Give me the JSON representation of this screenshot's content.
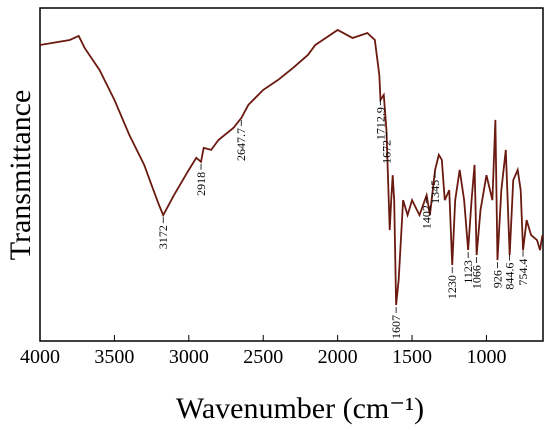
{
  "chart_data": {
    "type": "line",
    "xlabel": "Wavenumber (cm⁻¹)",
    "ylabel": "Transmittance",
    "xlim": [
      4000,
      620
    ],
    "xticks": [
      4000,
      3500,
      3000,
      2500,
      2000,
      1500,
      1000
    ],
    "ylim": [
      0,
      100
    ],
    "series": [
      {
        "color": "#6b1a10",
        "x": [
          4000,
          3800,
          3740,
          3700,
          3600,
          3500,
          3400,
          3300,
          3250,
          3200,
          3172,
          3100,
          3000,
          2950,
          2918,
          2900,
          2850,
          2800,
          2700,
          2647,
          2600,
          2500,
          2400,
          2300,
          2200,
          2150,
          2100,
          2000,
          1900,
          1800,
          1750,
          1720,
          1712,
          1690,
          1672,
          1650,
          1640,
          1630,
          1620,
          1607,
          1590,
          1560,
          1530,
          1500,
          1450,
          1402,
          1380,
          1345,
          1320,
          1300,
          1280,
          1250,
          1230,
          1210,
          1180,
          1150,
          1123,
          1100,
          1080,
          1066,
          1040,
          1000,
          960,
          940,
          926,
          900,
          870,
          844,
          820,
          790,
          770,
          754,
          730,
          700,
          660,
          640,
          624
        ],
        "values": [
          88.9,
          90.4,
          91.6,
          88.0,
          81.4,
          72.4,
          61.9,
          52.9,
          46.8,
          40.8,
          37.8,
          43.8,
          51.4,
          55.0,
          53.8,
          58.0,
          57.4,
          60.4,
          64.0,
          67.0,
          70.9,
          75.4,
          78.4,
          82.0,
          85.9,
          88.9,
          90.4,
          93.4,
          91.0,
          92.5,
          90.4,
          79.9,
          72.4,
          73.9,
          63.4,
          33.3,
          42.3,
          49.8,
          42.3,
          10.8,
          18.3,
          42.3,
          37.8,
          42.3,
          37.8,
          43.8,
          37.8,
          51.4,
          55.9,
          54.4,
          42.3,
          45.3,
          22.8,
          42.3,
          51.4,
          42.3,
          27.3,
          42.3,
          52.9,
          25.8,
          39.3,
          49.8,
          42.3,
          66.4,
          24.3,
          45.3,
          57.4,
          25.8,
          48.3,
          51.4,
          45.3,
          27.3,
          36.3,
          31.8,
          30.3,
          27.3,
          31.8
        ]
      }
    ],
    "annotations": [
      {
        "text": "3172",
        "x": 3172
      },
      {
        "text": "2918",
        "x": 2918
      },
      {
        "text": "2647.7",
        "x": 2647.7
      },
      {
        "text": "1712.9",
        "x": 1712.9
      },
      {
        "text": "1672",
        "x": 1672
      },
      {
        "text": "1607",
        "x": 1607
      },
      {
        "text": "1402",
        "x": 1402
      },
      {
        "text": "1345",
        "x": 1345
      },
      {
        "text": "1230",
        "x": 1230
      },
      {
        "text": "1123",
        "x": 1123
      },
      {
        "text": "1066",
        "x": 1066
      },
      {
        "text": "926",
        "x": 926
      },
      {
        "text": "844.6",
        "x": 844.6
      },
      {
        "text": "754.4",
        "x": 754.4
      }
    ]
  }
}
